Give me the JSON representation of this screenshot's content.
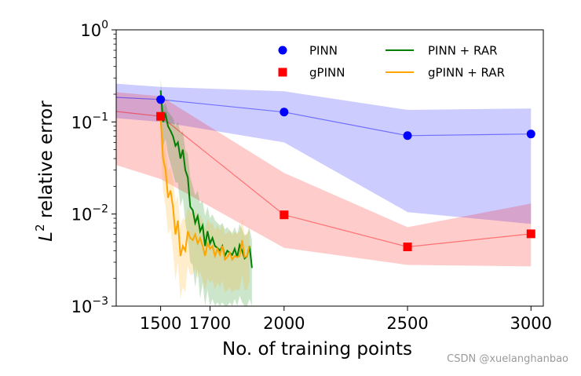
{
  "chart_data": {
    "type": "line",
    "xlabel": "No. of training points",
    "ylabel_prefix": "L",
    "ylabel_superscript": "2",
    "ylabel_rest": " relative error",
    "y_scale": "log",
    "xlim": [
      1320,
      3050
    ],
    "ylim": [
      0.001,
      1
    ],
    "x_ticks": [
      1500,
      1700,
      2000,
      2500,
      3000
    ],
    "y_ticks": [
      {
        "value": 0.001,
        "base": "10",
        "exp": "−3"
      },
      {
        "value": 0.01,
        "base": "10",
        "exp": "−2"
      },
      {
        "value": 0.1,
        "base": "10",
        "exp": "−1"
      },
      {
        "value": 1,
        "base": "10",
        "exp": "0"
      }
    ],
    "legend_position": "top-right",
    "series": [
      {
        "name": "PINN",
        "color": "#0000ff",
        "marker": "circle",
        "x": [
          1320,
          1500,
          2000,
          2500,
          3000
        ],
        "y": [
          0.185,
          0.175,
          0.128,
          0.071,
          0.074
        ],
        "band_upper": [
          0.26,
          0.24,
          0.215,
          0.135,
          0.14
        ],
        "band_lower": [
          0.11,
          0.1,
          0.06,
          0.0105,
          0.0078
        ]
      },
      {
        "name": "gPINN",
        "color": "#ff0000",
        "marker": "square",
        "x": [
          1320,
          1500,
          2000,
          2500,
          3000
        ],
        "y": [
          0.13,
          0.115,
          0.0098,
          0.0044,
          0.0061
        ],
        "band_upper": [
          0.21,
          0.19,
          0.028,
          0.0072,
          0.013
        ],
        "band_lower": [
          0.034,
          0.024,
          0.0043,
          0.0028,
          0.0027
        ]
      },
      {
        "name": "PINN + RAR",
        "color": "#008000",
        "x": [
          1500,
          1510,
          1520,
          1530,
          1540,
          1550,
          1560,
          1570,
          1580,
          1590,
          1600,
          1610,
          1620,
          1630,
          1640,
          1650,
          1660,
          1670,
          1680,
          1690,
          1700,
          1710,
          1720,
          1730,
          1740,
          1750,
          1760,
          1770,
          1780,
          1790,
          1800,
          1810,
          1820,
          1830,
          1840,
          1850,
          1860,
          1870
        ],
        "y": [
          0.22,
          0.1,
          0.12,
          0.09,
          0.08,
          0.07,
          0.055,
          0.06,
          0.04,
          0.05,
          0.03,
          0.025,
          0.012,
          0.011,
          0.008,
          0.0095,
          0.0065,
          0.0075,
          0.0045,
          0.0065,
          0.0048,
          0.0055,
          0.0045,
          0.0043,
          0.004,
          0.0045,
          0.0035,
          0.004,
          0.0038,
          0.0036,
          0.0042,
          0.0034,
          0.0046,
          0.004,
          0.0033,
          0.0035,
          0.0045,
          0.0026
        ],
        "band_upper": [
          0.3,
          0.15,
          0.16,
          0.13,
          0.12,
          0.11,
          0.09,
          0.1,
          0.075,
          0.08,
          0.05,
          0.045,
          0.025,
          0.02,
          0.016,
          0.018,
          0.013,
          0.014,
          0.0095,
          0.012,
          0.009,
          0.01,
          0.0085,
          0.008,
          0.0075,
          0.008,
          0.0068,
          0.0072,
          0.0066,
          0.0062,
          0.0072,
          0.006,
          0.0078,
          0.0068,
          0.0058,
          0.006,
          0.007,
          0.0052
        ],
        "band_lower": [
          0.1,
          0.055,
          0.065,
          0.045,
          0.035,
          0.028,
          0.022,
          0.022,
          0.012,
          0.015,
          0.008,
          0.0055,
          0.003,
          0.0028,
          0.0016,
          0.0025,
          0.0012,
          0.0018,
          0.001,
          0.0015,
          0.001,
          0.0012,
          0.001,
          0.0011,
          0.001,
          0.0011,
          0.001,
          0.001,
          0.0011,
          0.001,
          0.0012,
          0.001,
          0.0013,
          0.0011,
          0.001,
          0.001,
          0.0012,
          0.001
        ]
      },
      {
        "name": "gPINN + RAR",
        "color": "#ffa500",
        "x": [
          1500,
          1510,
          1520,
          1530,
          1540,
          1550,
          1560,
          1570,
          1580,
          1590,
          1600,
          1610,
          1620,
          1630,
          1640,
          1650,
          1660,
          1670,
          1680,
          1690,
          1700,
          1710,
          1720,
          1730,
          1740,
          1750,
          1760,
          1770,
          1780,
          1790,
          1800,
          1810,
          1820,
          1830,
          1840,
          1850,
          1860
        ],
        "y": [
          0.11,
          0.04,
          0.03,
          0.015,
          0.018,
          0.012,
          0.006,
          0.0085,
          0.0035,
          0.0045,
          0.004,
          0.0065,
          0.0055,
          0.0052,
          0.006,
          0.0048,
          0.0055,
          0.0045,
          0.0035,
          0.0048,
          0.0042,
          0.0045,
          0.0035,
          0.0042,
          0.0036,
          0.0045,
          0.0032,
          0.0034,
          0.0038,
          0.0032,
          0.0035,
          0.0034,
          0.0035,
          0.0052,
          0.0034,
          0.0035,
          0.0045
        ],
        "band_upper": [
          0.16,
          0.07,
          0.055,
          0.03,
          0.032,
          0.024,
          0.013,
          0.016,
          0.0075,
          0.009,
          0.0085,
          0.012,
          0.0105,
          0.01,
          0.011,
          0.009,
          0.0098,
          0.0085,
          0.0068,
          0.0088,
          0.0078,
          0.008,
          0.0066,
          0.0075,
          0.0066,
          0.0078,
          0.006,
          0.0062,
          0.0068,
          0.0058,
          0.0064,
          0.0062,
          0.0064,
          0.0088,
          0.006,
          0.0062,
          0.0075
        ],
        "band_lower": [
          0.06,
          0.018,
          0.012,
          0.006,
          0.007,
          0.004,
          0.0019,
          0.003,
          0.0012,
          0.0016,
          0.0014,
          0.0028,
          0.0022,
          0.0022,
          0.0026,
          0.002,
          0.0024,
          0.0019,
          0.0015,
          0.002,
          0.0018,
          0.0019,
          0.0015,
          0.0018,
          0.0016,
          0.0019,
          0.0014,
          0.0015,
          0.0016,
          0.0014,
          0.0015,
          0.0015,
          0.0015,
          0.0022,
          0.0015,
          0.0015,
          0.0019
        ]
      }
    ]
  },
  "watermark": "CSDN @xuelanghanbao"
}
